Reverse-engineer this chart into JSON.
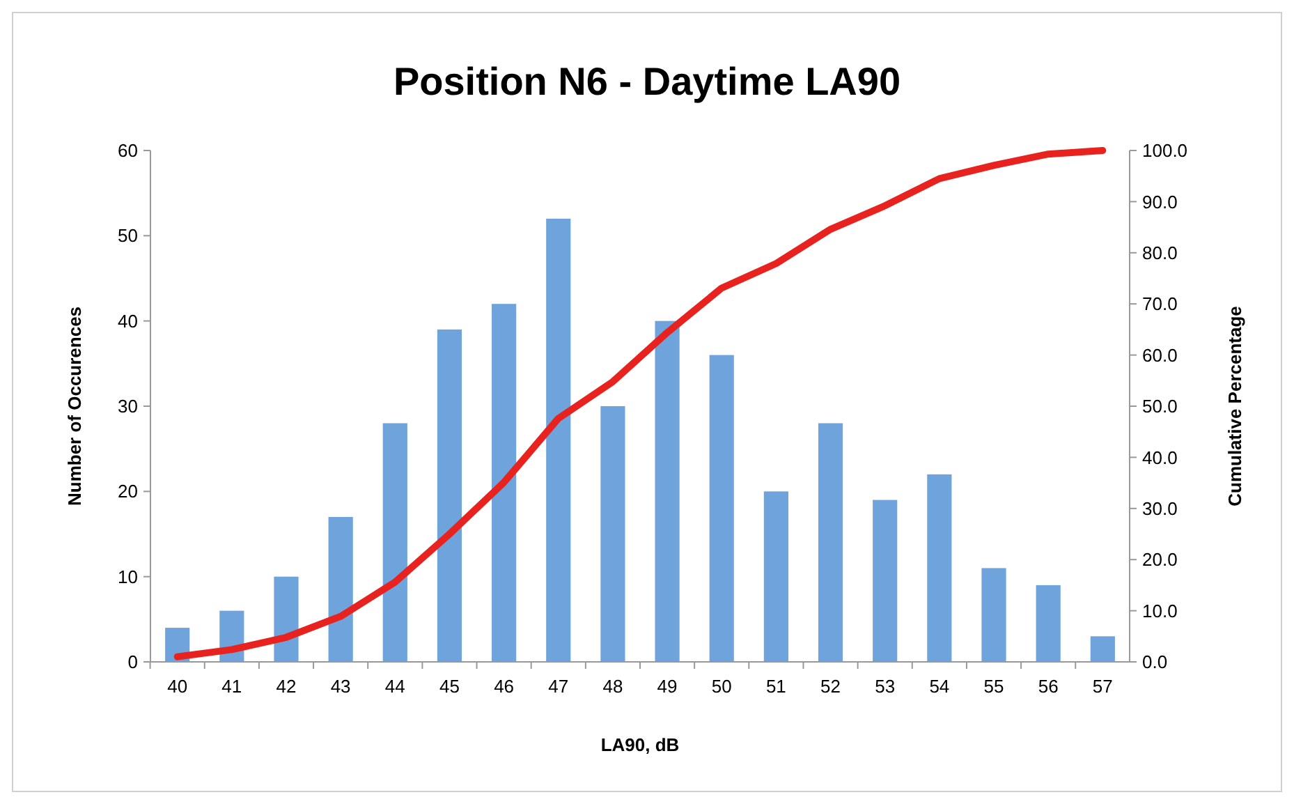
{
  "chart_data": {
    "type": "bar",
    "title": "Position N6 - Daytime LA90",
    "xlabel": "LA90, dB",
    "ylabel": "Number of Occurences",
    "y2label": "Cumulative Percentage",
    "categories": [
      "40",
      "41",
      "42",
      "43",
      "44",
      "45",
      "46",
      "47",
      "48",
      "49",
      "50",
      "51",
      "52",
      "53",
      "54",
      "55",
      "56",
      "57"
    ],
    "series": [
      {
        "color": "#6fa3dc",
        "values": [
          4,
          6,
          10,
          17,
          28,
          39,
          42,
          52,
          30,
          40,
          36,
          20,
          28,
          19,
          22,
          11,
          9,
          3
        ]
      },
      {
        "type": "line",
        "axis": "y2",
        "color": "#e8231f",
        "values": [
          1.0,
          2.4,
          4.8,
          8.9,
          15.6,
          25.0,
          35.1,
          47.6,
          54.8,
          64.4,
          73.1,
          77.9,
          84.6,
          89.2,
          94.5,
          97.1,
          99.3,
          100.0
        ]
      }
    ],
    "ylim": [
      0,
      60
    ],
    "yticks": [
      0,
      10,
      20,
      30,
      40,
      50,
      60
    ],
    "y2lim": [
      0,
      100
    ],
    "y2ticks": [
      {
        "value": 0,
        "label": "0.0"
      },
      {
        "value": 10,
        "label": "10.0"
      },
      {
        "value": 20,
        "label": "20.0"
      },
      {
        "value": 30,
        "label": "30.0"
      },
      {
        "value": 40,
        "label": "40.0"
      },
      {
        "value": 50,
        "label": "50.0"
      },
      {
        "value": 60,
        "label": "60.0"
      },
      {
        "value": 70,
        "label": "70.0"
      },
      {
        "value": 80,
        "label": "80.0"
      },
      {
        "value": 90,
        "label": "90.0"
      },
      {
        "value": 100,
        "label": "100.0"
      }
    ],
    "marker": "none",
    "line_style": "solid"
  }
}
